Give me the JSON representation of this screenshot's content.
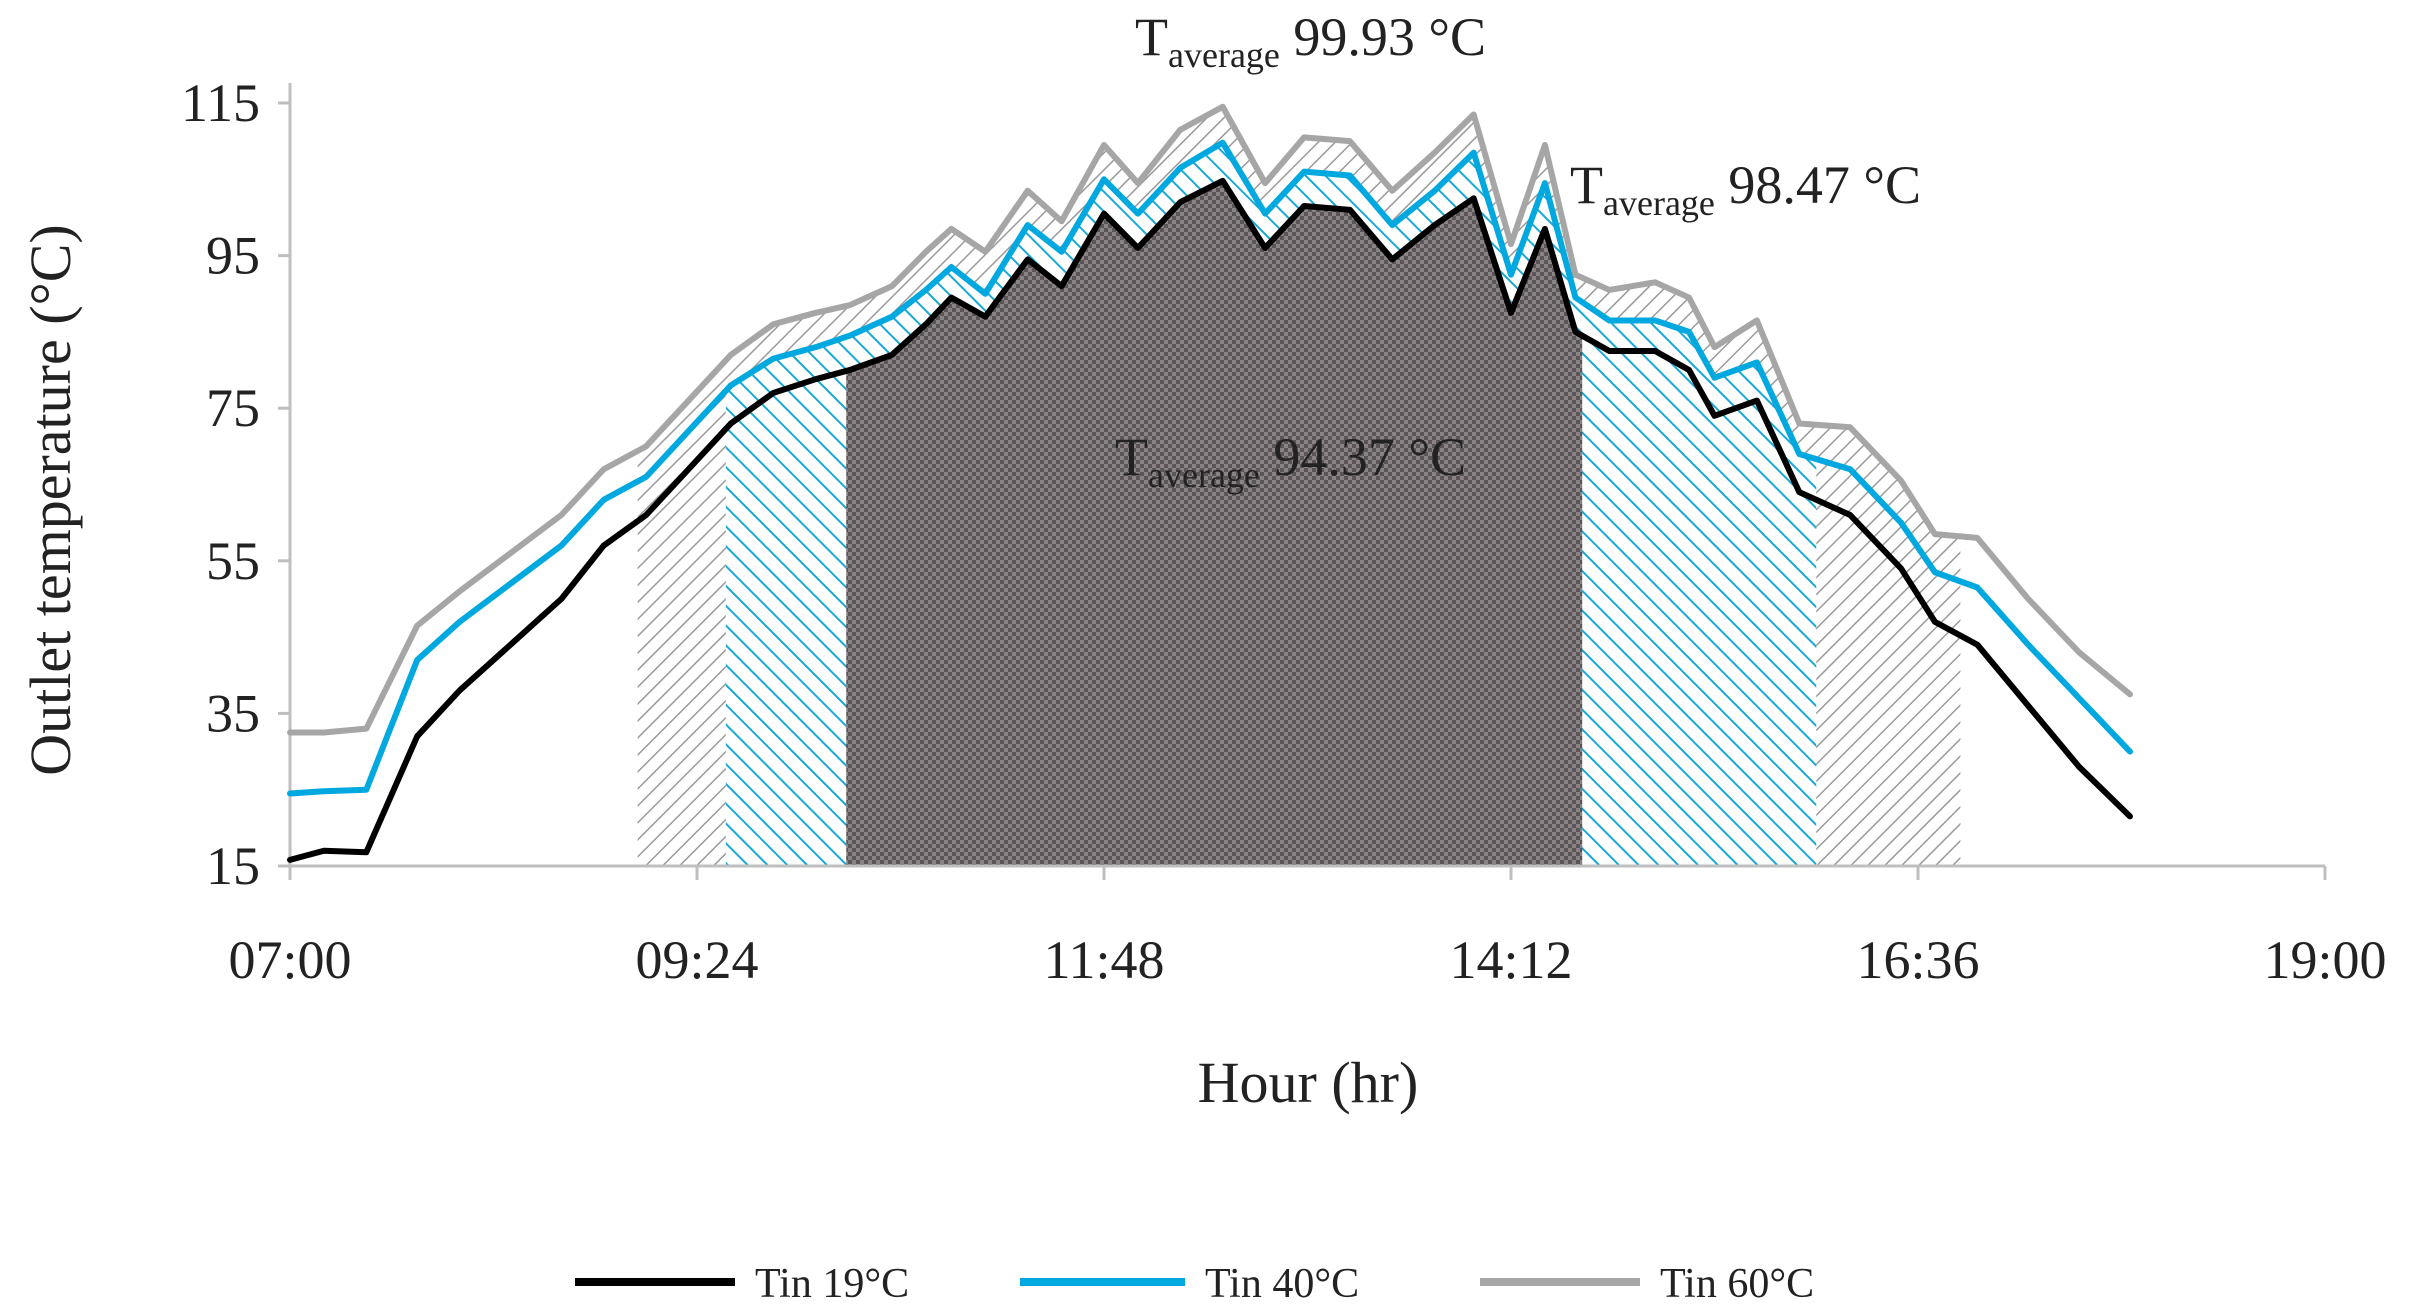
{
  "chart_data": {
    "type": "line",
    "xlabel": "Hour (hr)",
    "ylabel": "Outlet temperature (°C)",
    "ylim": [
      15,
      115
    ],
    "xlim": [
      7.0,
      19.0
    ],
    "yticks": [
      15,
      35,
      55,
      75,
      95,
      115
    ],
    "xticks": [
      {
        "value": 7.0,
        "label": "07:00"
      },
      {
        "value": 9.4,
        "label": "09:24"
      },
      {
        "value": 11.8,
        "label": "11:48"
      },
      {
        "value": 14.2,
        "label": "14:12"
      },
      {
        "value": 16.6,
        "label": "16:36"
      },
      {
        "value": 19.0,
        "label": "19:00"
      }
    ],
    "series": [
      {
        "name": "Tin 19°C",
        "color": "#000000",
        "points": [
          [
            7.0,
            15.8
          ],
          [
            7.2,
            17.0
          ],
          [
            7.45,
            16.8
          ],
          [
            7.75,
            32.0
          ],
          [
            8.0,
            38.0
          ],
          [
            8.3,
            44.0
          ],
          [
            8.6,
            50.0
          ],
          [
            8.85,
            57.0
          ],
          [
            9.1,
            61.0
          ],
          [
            9.35,
            67.0
          ],
          [
            9.6,
            73.0
          ],
          [
            9.85,
            77.0
          ],
          [
            10.1,
            78.8
          ],
          [
            10.3,
            80.0
          ],
          [
            10.55,
            82.0
          ],
          [
            10.75,
            86.0
          ],
          [
            10.9,
            89.5
          ],
          [
            11.1,
            87.0
          ],
          [
            11.35,
            94.5
          ],
          [
            11.55,
            91.0
          ],
          [
            11.8,
            100.5
          ],
          [
            12.0,
            96.0
          ],
          [
            12.25,
            102.0
          ],
          [
            12.5,
            104.8
          ],
          [
            12.75,
            96.0
          ],
          [
            12.98,
            101.5
          ],
          [
            13.25,
            101.0
          ],
          [
            13.5,
            94.5
          ],
          [
            13.75,
            99.0
          ],
          [
            13.98,
            102.5
          ],
          [
            14.2,
            87.5
          ],
          [
            14.4,
            98.5
          ],
          [
            14.58,
            85.0
          ],
          [
            14.78,
            82.5
          ],
          [
            15.05,
            82.5
          ],
          [
            15.25,
            80.0
          ],
          [
            15.4,
            74.0
          ],
          [
            15.65,
            76.0
          ],
          [
            15.9,
            64.0
          ],
          [
            16.2,
            61.0
          ],
          [
            16.5,
            54.0
          ],
          [
            16.7,
            47.0
          ],
          [
            16.95,
            44.0
          ],
          [
            17.25,
            36.0
          ],
          [
            17.55,
            28.0
          ],
          [
            17.85,
            21.5
          ]
        ]
      },
      {
        "name": "Tin 40°C",
        "color": "#00a8e0",
        "points": [
          [
            7.0,
            24.5
          ],
          [
            7.2,
            24.8
          ],
          [
            7.45,
            25.0
          ],
          [
            7.75,
            42.0
          ],
          [
            8.0,
            47.0
          ],
          [
            8.3,
            52.0
          ],
          [
            8.6,
            57.0
          ],
          [
            8.85,
            63.0
          ],
          [
            9.1,
            66.0
          ],
          [
            9.35,
            72.0
          ],
          [
            9.6,
            78.0
          ],
          [
            9.85,
            81.5
          ],
          [
            10.1,
            83.0
          ],
          [
            10.3,
            84.5
          ],
          [
            10.55,
            87.0
          ],
          [
            10.75,
            90.5
          ],
          [
            10.9,
            93.5
          ],
          [
            11.1,
            90.0
          ],
          [
            11.35,
            99.0
          ],
          [
            11.55,
            95.5
          ],
          [
            11.8,
            105.0
          ],
          [
            12.0,
            100.5
          ],
          [
            12.25,
            106.5
          ],
          [
            12.5,
            109.8
          ],
          [
            12.75,
            100.5
          ],
          [
            12.98,
            106.0
          ],
          [
            13.25,
            105.5
          ],
          [
            13.5,
            99.0
          ],
          [
            13.75,
            103.5
          ],
          [
            13.98,
            108.5
          ],
          [
            14.2,
            92.5
          ],
          [
            14.4,
            104.5
          ],
          [
            14.58,
            89.5
          ],
          [
            14.78,
            86.5
          ],
          [
            15.05,
            86.5
          ],
          [
            15.25,
            85.0
          ],
          [
            15.4,
            79.0
          ],
          [
            15.65,
            81.0
          ],
          [
            15.9,
            69.0
          ],
          [
            16.2,
            67.0
          ],
          [
            16.5,
            60.0
          ],
          [
            16.7,
            53.5
          ],
          [
            16.95,
            51.5
          ],
          [
            17.25,
            44.0
          ],
          [
            17.55,
            37.0
          ],
          [
            17.85,
            30.0
          ]
        ]
      },
      {
        "name": "Tin 60°C",
        "color": "#a6a6a6",
        "points": [
          [
            7.0,
            32.5
          ],
          [
            7.2,
            32.5
          ],
          [
            7.45,
            33.0
          ],
          [
            7.75,
            46.5
          ],
          [
            8.0,
            51.0
          ],
          [
            8.3,
            56.0
          ],
          [
            8.6,
            61.0
          ],
          [
            8.85,
            67.0
          ],
          [
            9.1,
            70.0
          ],
          [
            9.35,
            76.0
          ],
          [
            9.6,
            82.0
          ],
          [
            9.85,
            86.0
          ],
          [
            10.1,
            87.5
          ],
          [
            10.3,
            88.5
          ],
          [
            10.55,
            91.0
          ],
          [
            10.75,
            95.5
          ],
          [
            10.9,
            98.5
          ],
          [
            11.1,
            95.5
          ],
          [
            11.35,
            103.5
          ],
          [
            11.55,
            99.5
          ],
          [
            11.8,
            109.5
          ],
          [
            12.0,
            104.5
          ],
          [
            12.25,
            111.5
          ],
          [
            12.5,
            114.5
          ],
          [
            12.75,
            104.5
          ],
          [
            12.98,
            110.5
          ],
          [
            13.25,
            110.0
          ],
          [
            13.5,
            103.5
          ],
          [
            13.75,
            108.5
          ],
          [
            13.98,
            113.5
          ],
          [
            14.2,
            96.5
          ],
          [
            14.4,
            109.5
          ],
          [
            14.58,
            92.5
          ],
          [
            14.78,
            90.5
          ],
          [
            15.05,
            91.5
          ],
          [
            15.25,
            89.5
          ],
          [
            15.4,
            83.0
          ],
          [
            15.65,
            86.5
          ],
          [
            15.9,
            73.0
          ],
          [
            16.2,
            72.5
          ],
          [
            16.5,
            65.5
          ],
          [
            16.7,
            58.5
          ],
          [
            16.95,
            58.0
          ],
          [
            17.25,
            50.0
          ],
          [
            17.55,
            43.0
          ],
          [
            17.85,
            37.5
          ]
        ]
      }
    ],
    "shaded_regions": [
      {
        "name": "Tin 60°C average band",
        "series": "Tin 60°C",
        "x_start": 9.05,
        "x_end": 16.85,
        "pattern": "gray-hatch"
      },
      {
        "name": "Tin 40°C average band",
        "series": "Tin 40°C",
        "x_start": 9.57,
        "x_end": 16.0,
        "pattern": "cyan-hatch"
      },
      {
        "name": "Tin 19°C average band",
        "series": "Tin 19°C",
        "x_start": 10.28,
        "x_end": 14.62,
        "pattern": "dark-checker"
      }
    ],
    "annotations": [
      {
        "main": "T",
        "sub": "average",
        "value": " 99.93 °C",
        "series": "Tin 60°C"
      },
      {
        "main": "T",
        "sub": "average",
        "value": " 98.47 °C",
        "series": "Tin 40°C"
      },
      {
        "main": "T",
        "sub": "average",
        "value": " 94.37 °C",
        "series": "Tin 19°C"
      }
    ],
    "legend": {
      "placement": "bottom",
      "entries": [
        "Tin 19°C",
        "Tin 40°C",
        "Tin 60°C"
      ]
    }
  }
}
